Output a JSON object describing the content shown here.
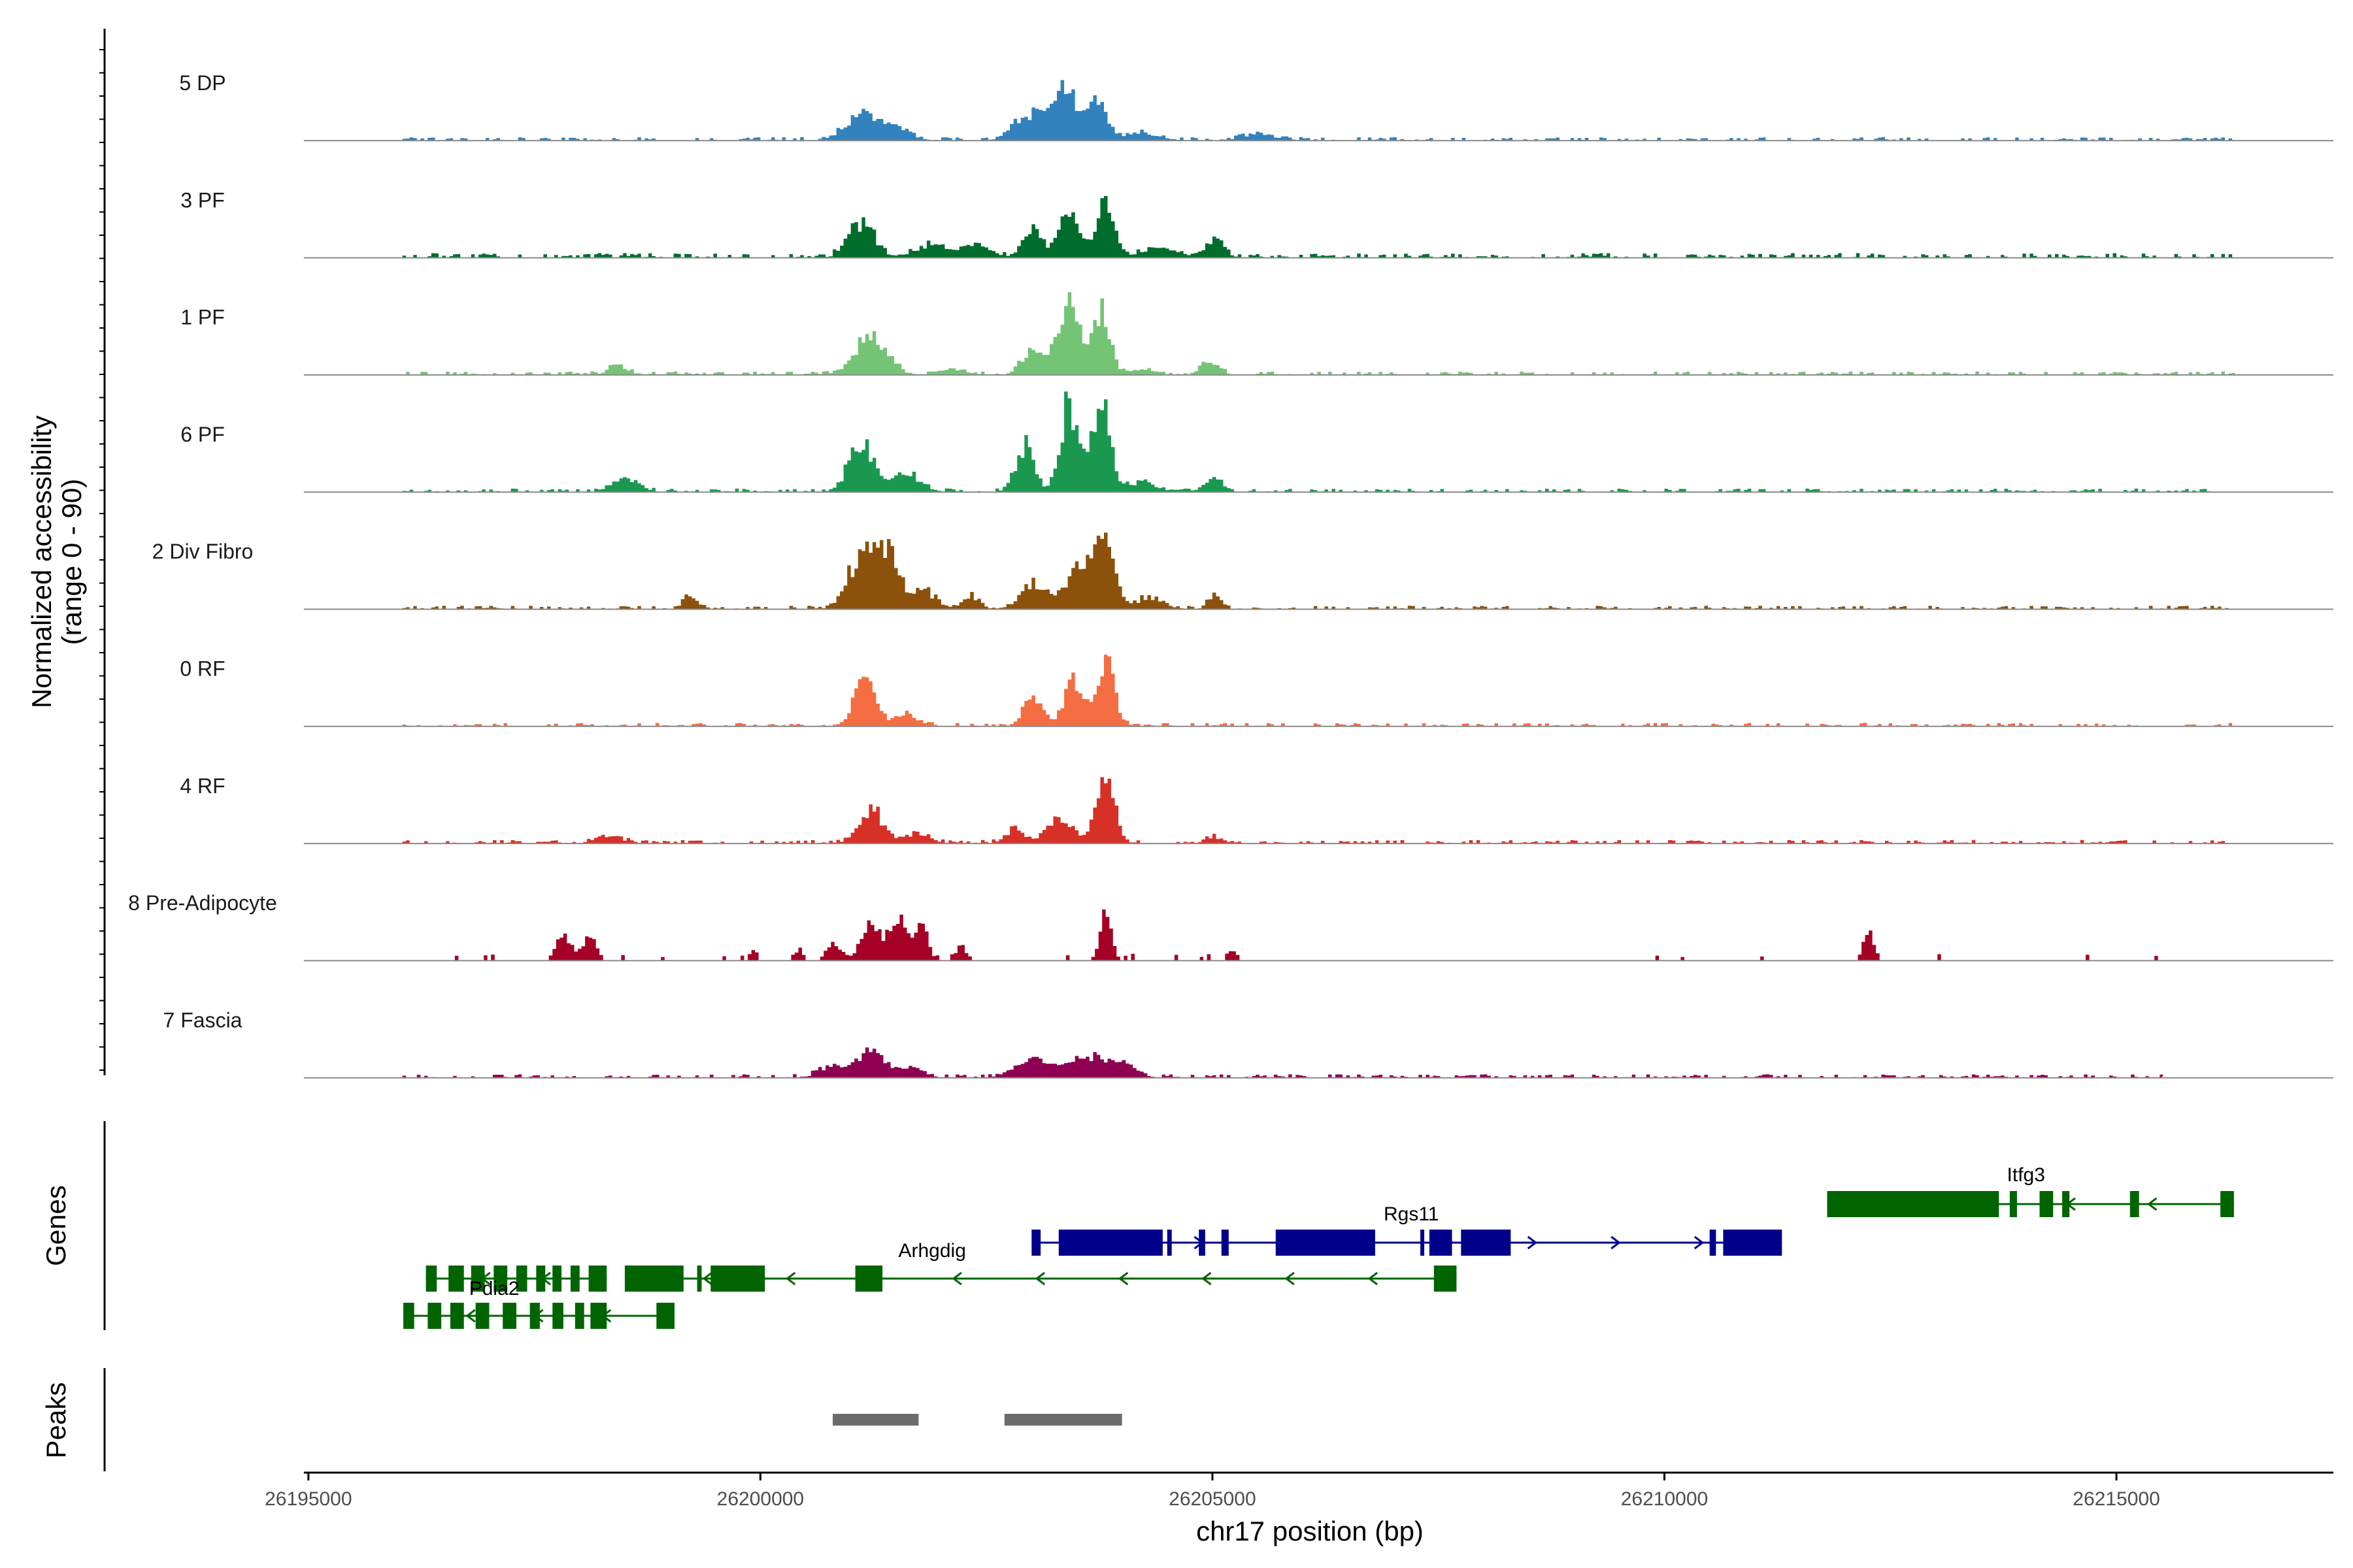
{
  "chart_data": {
    "type": "area",
    "title": "",
    "xlabel": "chr17 position (bp)",
    "ylabel": "Normalized accessibility",
    "ylabel_range": "(range 0 - 90)",
    "xlim": [
      26194900,
      26217400
    ],
    "ylim": [
      0,
      90
    ],
    "x_ticks": [
      {
        "value": 26195000,
        "label": "26195000"
      },
      {
        "value": 26200000,
        "label": "26200000"
      },
      {
        "value": 26205000,
        "label": "26205000"
      },
      {
        "value": 26210000,
        "label": "26210000"
      },
      {
        "value": 26215000,
        "label": "26215000"
      }
    ],
    "series": [
      {
        "name": "5 DP",
        "color": "#3182bd",
        "noise": {
          "range": [
            26196000,
            26216300
          ],
          "level": 3
        },
        "peaks": [
          [
            26201100,
            22,
            180
          ],
          [
            26201500,
            10,
            150
          ],
          [
            26202900,
            18,
            150
          ],
          [
            26203100,
            14,
            100
          ],
          [
            26203350,
            45,
            110
          ],
          [
            26203700,
            38,
            110
          ],
          [
            26204200,
            6,
            200
          ],
          [
            26205500,
            5,
            200
          ]
        ]
      },
      {
        "name": "3 PF",
        "color": "#006d2c",
        "noise": {
          "range": [
            26196000,
            26216300
          ],
          "level": 4
        },
        "peaks": [
          [
            26201100,
            30,
            140
          ],
          [
            26201900,
            10,
            200
          ],
          [
            26202400,
            8,
            150
          ],
          [
            26203000,
            24,
            110
          ],
          [
            26203400,
            40,
            100
          ],
          [
            26203800,
            45,
            100
          ],
          [
            26204400,
            8,
            200
          ],
          [
            26205000,
            15,
            100
          ]
        ]
      },
      {
        "name": "1 PF",
        "color": "#74c476",
        "noise": {
          "range": [
            26196000,
            26216300
          ],
          "level": 3
        },
        "peaks": [
          [
            26198400,
            8,
            100
          ],
          [
            26201200,
            30,
            180
          ],
          [
            26202100,
            5,
            150
          ],
          [
            26203000,
            20,
            120
          ],
          [
            26203300,
            22,
            100
          ],
          [
            26203430,
            55,
            90
          ],
          [
            26203750,
            58,
            90
          ],
          [
            26204200,
            5,
            150
          ],
          [
            26204950,
            10,
            100
          ]
        ]
      },
      {
        "name": "6 PF",
        "color": "#1b9850",
        "noise": {
          "range": [
            26196000,
            26216000
          ],
          "level": 3
        },
        "peaks": [
          [
            26198500,
            12,
            140
          ],
          [
            26201100,
            40,
            140
          ],
          [
            26201600,
            15,
            150
          ],
          [
            26202900,
            38,
            100
          ],
          [
            26203400,
            75,
            100
          ],
          [
            26203750,
            72,
            100
          ],
          [
            26204200,
            8,
            150
          ],
          [
            26205000,
            12,
            100
          ]
        ]
      },
      {
        "name": "2 Div Fibro",
        "color": "#8c510a",
        "noise": {
          "range": [
            26196000,
            26216300
          ],
          "level": 3
        },
        "peaks": [
          [
            26199200,
            10,
            80
          ],
          [
            26201100,
            45,
            150
          ],
          [
            26201400,
            48,
            120
          ],
          [
            26201800,
            15,
            120
          ],
          [
            26202300,
            10,
            100
          ],
          [
            26203000,
            20,
            150
          ],
          [
            26203500,
            40,
            130
          ],
          [
            26203800,
            60,
            100
          ],
          [
            26204300,
            10,
            150
          ],
          [
            26205000,
            12,
            70
          ]
        ]
      },
      {
        "name": "0 RF",
        "color": "#f46d43",
        "noise": {
          "range": [
            26196000,
            26216300
          ],
          "level": 3
        },
        "peaks": [
          [
            26201150,
            40,
            120
          ],
          [
            26201600,
            10,
            120
          ],
          [
            26203000,
            25,
            110
          ],
          [
            26203450,
            38,
            100
          ],
          [
            26203800,
            52,
            100
          ]
        ]
      },
      {
        "name": "4 RF",
        "color": "#d73027",
        "noise": {
          "range": [
            26196000,
            26216300
          ],
          "level": 3
        },
        "peaks": [
          [
            26198300,
            5,
            150
          ],
          [
            26201200,
            30,
            130
          ],
          [
            26201700,
            8,
            150
          ],
          [
            26202800,
            12,
            100
          ],
          [
            26203300,
            20,
            150
          ],
          [
            26203800,
            55,
            100
          ],
          [
            26205000,
            5,
            100
          ]
        ]
      },
      {
        "name": "8 Pre-Adipocyte",
        "color": "#a50026",
        "noise": {
          "range": [
            26196500,
            26215500
          ],
          "level": 2
        },
        "peaks": [
          [
            26197800,
            25,
            80
          ],
          [
            26198100,
            20,
            80
          ],
          [
            26200800,
            15,
            80
          ],
          [
            26201200,
            35,
            100
          ],
          [
            26201500,
            40,
            80
          ],
          [
            26201750,
            30,
            80
          ],
          [
            26203800,
            45,
            60
          ],
          [
            26205200,
            8,
            60
          ],
          [
            26212250,
            25,
            60
          ],
          [
            26199900,
            8,
            50
          ],
          [
            26200400,
            10,
            50
          ],
          [
            26202200,
            12,
            50
          ]
        ]
      },
      {
        "name": "7 Fascia",
        "color": "#8e0152",
        "noise": {
          "range": [
            26196000,
            26215500
          ],
          "level": 3
        },
        "peaks": [
          [
            26200800,
            10,
            150
          ],
          [
            26201200,
            25,
            120
          ],
          [
            26201600,
            10,
            150
          ],
          [
            26203000,
            15,
            200
          ],
          [
            26203600,
            18,
            200
          ],
          [
            26204000,
            10,
            150
          ]
        ]
      }
    ],
    "genes_track": {
      "label": "Genes",
      "genes": [
        {
          "name": "Pdia2",
          "strand": "-",
          "color": "#006400",
          "start": 26196300,
          "end": 26198300,
          "exons": [
            [
              26196300,
              26196420
            ],
            [
              26196550,
              26196720
            ],
            [
              26196800,
              26196950
            ],
            [
              26197050,
              26197200
            ],
            [
              26197300,
              26197420
            ],
            [
              26197520,
              26197620
            ],
            [
              26197700,
              26197800
            ],
            [
              26197900,
              26198000
            ],
            [
              26198100,
              26198300
            ]
          ]
        },
        {
          "name": "Pdia2",
          "strand": "-",
          "color": "#006400",
          "start": 26196050,
          "end": 26199050,
          "exons": [
            [
              26196050,
              26196170
            ],
            [
              26196320,
              26196470
            ],
            [
              26196570,
              26196720
            ],
            [
              26196850,
              26197000
            ],
            [
              26197150,
              26197300
            ],
            [
              26197450,
              26197560
            ],
            [
              26197700,
              26197820
            ],
            [
              26197950,
              26198050
            ],
            [
              26198120,
              26198300
            ],
            [
              26198850,
              26199050
            ]
          ]
        },
        {
          "name": "Arhgdig",
          "strand": "-",
          "color": "#006400",
          "start": 26198500,
          "end": 26207700,
          "exons": [
            [
              26198500,
              26199150
            ],
            [
              26199300,
              26199350
            ],
            [
              26199450,
              26200050
            ],
            [
              26201050,
              26201350
            ],
            [
              26207450,
              26207700
            ]
          ]
        },
        {
          "name": "Rgs11",
          "strand": "+",
          "color": "#00008b",
          "start": 26203000,
          "end": 26211300,
          "exons": [
            [
              26203000,
              26203100
            ],
            [
              26203300,
              26204450
            ],
            [
              26204500,
              26204550
            ],
            [
              26204850,
              26204920
            ],
            [
              26205100,
              26205180
            ],
            [
              26205700,
              26206800
            ],
            [
              26207300,
              26207320
            ],
            [
              26207400,
              26207650
            ],
            [
              26207750,
              26208300
            ],
            [
              26210500,
              26210570
            ],
            [
              26210650,
              26211300
            ]
          ]
        },
        {
          "name": "Itfg3",
          "strand": "-",
          "color": "#006400",
          "start": 26211800,
          "end": 26216300,
          "exons": [
            [
              26211800,
              26213700
            ],
            [
              26213820,
              26213900
            ],
            [
              26214150,
              26214300
            ],
            [
              26214400,
              26214480
            ],
            [
              26215150,
              26215250
            ],
            [
              26216150,
              26216300
            ]
          ]
        }
      ]
    },
    "peaks_track": {
      "label": "Peaks",
      "color": "#6b6b6b",
      "regions": [
        [
          26200800,
          26201750
        ],
        [
          26202700,
          26204000
        ]
      ]
    }
  }
}
